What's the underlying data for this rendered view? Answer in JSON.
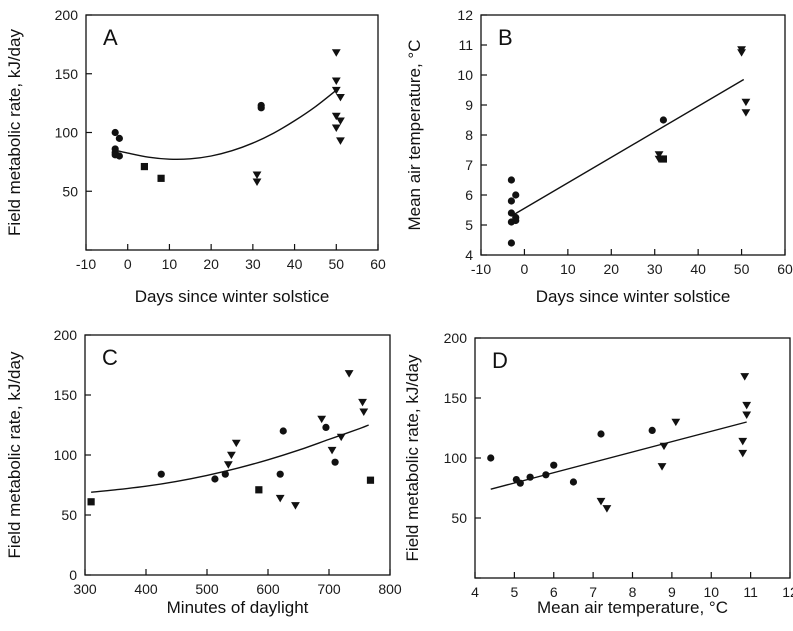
{
  "chart_data": [
    {
      "id": "A",
      "type": "scatter",
      "panel_label": "A",
      "xlabel": "Days since winter solstice",
      "ylabel": "Field metabolic rate, kJ/day",
      "xlim": [
        -10,
        60
      ],
      "ylim": [
        0,
        200
      ],
      "xticks": [
        -10,
        0,
        10,
        20,
        30,
        40,
        50,
        60
      ],
      "yticks": [
        0,
        50,
        100,
        150,
        200
      ],
      "ytick_labels": [
        "",
        "50",
        "100",
        "150",
        "200"
      ],
      "grid": false,
      "series": [
        {
          "marker": "circle",
          "points": [
            [
              -3,
              100
            ],
            [
              -3,
              86
            ],
            [
              -3,
              83
            ],
            [
              -3,
              81
            ],
            [
              -2,
              95
            ],
            [
              -2,
              80
            ],
            [
              32,
              123
            ],
            [
              32,
              121
            ]
          ]
        },
        {
          "marker": "square",
          "points": [
            [
              4,
              71
            ],
            [
              8,
              61
            ]
          ]
        },
        {
          "marker": "triangle-down",
          "points": [
            [
              31,
              64
            ],
            [
              31,
              58
            ],
            [
              50,
              168
            ],
            [
              50,
              144
            ],
            [
              50,
              136
            ],
            [
              50,
              114
            ],
            [
              50,
              104
            ],
            [
              51,
              130
            ],
            [
              51,
              110
            ],
            [
              51,
              93
            ]
          ]
        }
      ],
      "fit": {
        "kind": "curve",
        "points": [
          [
            -3,
            85
          ],
          [
            0,
            82.5
          ],
          [
            5,
            79
          ],
          [
            10,
            77.3
          ],
          [
            15,
            77.6
          ],
          [
            20,
            80
          ],
          [
            25,
            84.5
          ],
          [
            30,
            91
          ],
          [
            35,
            99.5
          ],
          [
            40,
            110
          ],
          [
            45,
            122
          ],
          [
            50,
            136
          ]
        ]
      }
    },
    {
      "id": "B",
      "type": "scatter",
      "panel_label": "B",
      "xlabel": "Days since winter solstice",
      "ylabel": "Mean air temperature, °C",
      "xlim": [
        -10,
        60
      ],
      "ylim": [
        4,
        12
      ],
      "xticks": [
        -10,
        0,
        10,
        20,
        30,
        40,
        50,
        60
      ],
      "yticks": [
        4,
        5,
        6,
        7,
        8,
        9,
        10,
        11,
        12
      ],
      "ytick_labels": [
        "4",
        "5",
        "6",
        "7",
        "8",
        "9",
        "10",
        "11",
        "12"
      ],
      "grid": false,
      "series": [
        {
          "marker": "circle",
          "points": [
            [
              -3,
              6.5
            ],
            [
              -3,
              5.8
            ],
            [
              -3,
              5.4
            ],
            [
              -3,
              5.1
            ],
            [
              -3,
              4.4
            ],
            [
              -2,
              6.0
            ],
            [
              -2,
              5.25
            ],
            [
              -2,
              5.15
            ],
            [
              32,
              8.5
            ]
          ]
        },
        {
          "marker": "square",
          "points": [
            [
              32,
              7.2
            ]
          ]
        },
        {
          "marker": "triangle-down",
          "points": [
            [
              31,
              7.35
            ],
            [
              31,
              7.2
            ],
            [
              50,
              10.85
            ],
            [
              50,
              10.75
            ],
            [
              51,
              9.1
            ],
            [
              51,
              8.75
            ]
          ]
        }
      ],
      "fit": {
        "kind": "line",
        "points": [
          [
            -3,
            5.3
          ],
          [
            50.5,
            9.85
          ]
        ]
      }
    },
    {
      "id": "C",
      "type": "scatter",
      "panel_label": "C",
      "xlabel": "Minutes of daylight",
      "ylabel": "Field metabolic rate, kJ/day",
      "xlim": [
        300,
        800
      ],
      "ylim": [
        0,
        200
      ],
      "xticks": [
        300,
        400,
        500,
        600,
        700,
        800
      ],
      "yticks": [
        0,
        50,
        100,
        150,
        200
      ],
      "ytick_labels": [
        "0",
        "50",
        "100",
        "150",
        "200"
      ],
      "grid": false,
      "series": [
        {
          "marker": "circle",
          "points": [
            [
              425,
              84
            ],
            [
              513,
              80
            ],
            [
              530,
              84
            ],
            [
              620,
              84
            ],
            [
              625,
              120
            ],
            [
              695,
              123
            ],
            [
              710,
              94
            ]
          ]
        },
        {
          "marker": "square",
          "points": [
            [
              310,
              61
            ],
            [
              585,
              71
            ],
            [
              768,
              79
            ]
          ]
        },
        {
          "marker": "triangle-down",
          "points": [
            [
              535,
              92
            ],
            [
              540,
              100
            ],
            [
              548,
              110
            ],
            [
              620,
              64
            ],
            [
              645,
              58
            ],
            [
              688,
              130
            ],
            [
              705,
              104
            ],
            [
              720,
              115
            ],
            [
              733,
              168
            ],
            [
              755,
              144
            ],
            [
              757,
              136
            ]
          ]
        }
      ],
      "fit": {
        "kind": "curve",
        "points": [
          [
            310,
            69
          ],
          [
            350,
            71
          ],
          [
            400,
            74
          ],
          [
            450,
            78
          ],
          [
            500,
            83
          ],
          [
            550,
            89
          ],
          [
            600,
            96
          ],
          [
            650,
            104
          ],
          [
            700,
            113
          ],
          [
            750,
            122
          ],
          [
            765,
            125
          ]
        ]
      }
    },
    {
      "id": "D",
      "type": "scatter",
      "panel_label": "D",
      "xlabel": "Mean air temperature, °C",
      "ylabel": "Field metabolic rate, kJ/day",
      "xlim": [
        4,
        12
      ],
      "ylim": [
        0,
        200
      ],
      "xticks": [
        4,
        5,
        6,
        7,
        8,
        9,
        10,
        11,
        12
      ],
      "yticks": [
        0,
        50,
        100,
        150,
        200
      ],
      "ytick_labels": [
        "",
        "50",
        "100",
        "150",
        "200"
      ],
      "grid": false,
      "series": [
        {
          "marker": "circle",
          "points": [
            [
              4.4,
              100
            ],
            [
              5.05,
              82
            ],
            [
              5.15,
              79
            ],
            [
              5.4,
              84
            ],
            [
              5.8,
              86
            ],
            [
              6.0,
              94
            ],
            [
              6.5,
              80
            ],
            [
              7.2,
              120
            ],
            [
              8.5,
              123
            ]
          ]
        },
        {
          "marker": "square",
          "points": []
        },
        {
          "marker": "triangle-down",
          "points": [
            [
              7.2,
              64
            ],
            [
              7.35,
              58
            ],
            [
              8.75,
              93
            ],
            [
              8.8,
              110
            ],
            [
              9.1,
              130
            ],
            [
              10.8,
              114
            ],
            [
              10.8,
              104
            ],
            [
              10.85,
              168
            ],
            [
              10.9,
              144
            ],
            [
              10.9,
              136
            ]
          ]
        }
      ],
      "fit": {
        "kind": "line",
        "points": [
          [
            4.4,
            74
          ],
          [
            10.9,
            130
          ]
        ]
      }
    }
  ]
}
